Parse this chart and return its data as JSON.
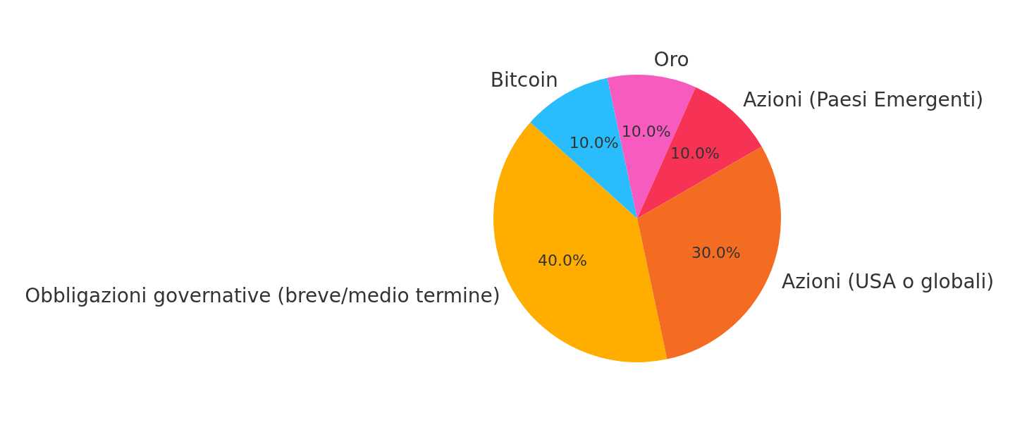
{
  "chart_data": {
    "type": "pie",
    "categories": [
      "Obbligazioni governative (breve/medio termine)",
      "Bitcoin",
      "Oro",
      "Azioni (Paesi Emergenti)",
      "Azioni (USA o globali)"
    ],
    "values": [
      40,
      10,
      10,
      10,
      30
    ],
    "value_labels": [
      "40.0%",
      "10.0%",
      "10.0%",
      "10.0%",
      "30.0%"
    ],
    "colors": [
      "#ffae00",
      "#29bdfd",
      "#f75bbf",
      "#f73355",
      "#f46b22"
    ],
    "legend": false
  }
}
